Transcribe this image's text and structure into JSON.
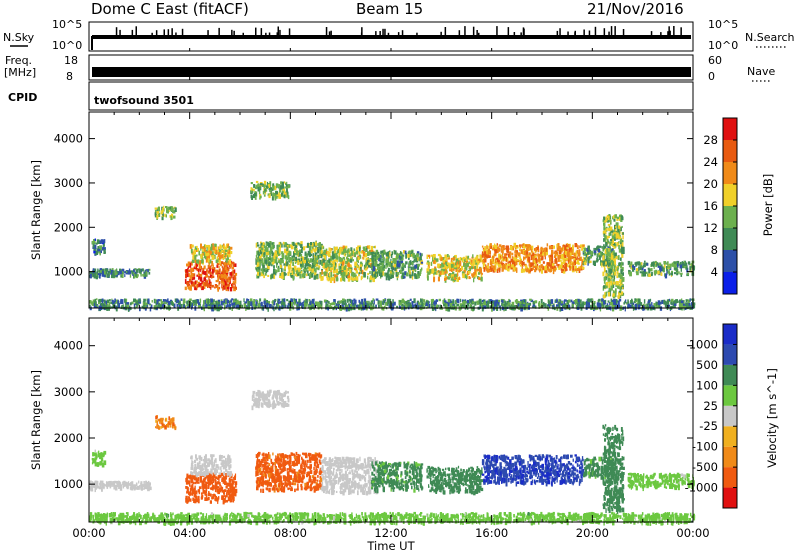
{
  "header": {
    "station": "Dome C East (fitACF)",
    "beam": "Beam 15",
    "date": "21/Nov/2016"
  },
  "panels": {
    "nsky_label": "N.Sky",
    "nsky_top": "10^5",
    "nsky_bottom": "10^0",
    "nsearch_label": "N.Search",
    "nsearch_top": "10^5",
    "nsearch_bottom": "10^0",
    "freq_label_1": "Freq.",
    "freq_label_2": "[MHz]",
    "freq_top": "18",
    "freq_bottom": "8",
    "nave_label": "Nave",
    "nave_top": "60",
    "nave_bottom": "0",
    "cpid_label": "CPID",
    "cpid_value": "twofsound 3501"
  },
  "colors": {
    "power_scale": [
      "#0b1fe8",
      "#2d50a8",
      "#3f8a55",
      "#6cb04e",
      "#f0d02a",
      "#f08a18",
      "#e85a10",
      "#e01010"
    ],
    "velocity_scale": [
      "#e01010",
      "#f05a10",
      "#f08a18",
      "#f0b020",
      "#c8c8c8",
      "#6cc840",
      "#3f8a55",
      "#2d4ab0",
      "#1a2cc8"
    ]
  },
  "chart_data": [
    {
      "type": "heatmap",
      "name": "power",
      "ylabel": "Slant Range [km]",
      "ylim": [
        180,
        4600
      ],
      "yticks": [
        "1000",
        "2000",
        "3000",
        "4000"
      ],
      "colorbar_label": "Power [dB]",
      "colorbar_ticks": [
        "4",
        "8",
        "12",
        "16",
        "20",
        "24",
        "28"
      ],
      "colorbar_range": [
        0,
        32
      ],
      "grid": false,
      "regions": [
        {
          "t0": 0.0,
          "t1": 2.4,
          "r0": 930,
          "r1": 1080,
          "value": 10
        },
        {
          "t0": 0.1,
          "t1": 0.6,
          "r0": 1450,
          "r1": 1750,
          "value": 8
        },
        {
          "t0": 2.6,
          "t1": 3.4,
          "r0": 2250,
          "r1": 2500,
          "value": 14
        },
        {
          "t0": 3.8,
          "t1": 5.8,
          "r0": 650,
          "r1": 1250,
          "value": 26
        },
        {
          "t0": 4.0,
          "t1": 5.6,
          "r0": 1250,
          "r1": 1650,
          "value": 18
        },
        {
          "t0": 6.4,
          "t1": 7.9,
          "r0": 2700,
          "r1": 3050,
          "value": 14
        },
        {
          "t0": 6.6,
          "t1": 9.2,
          "r0": 900,
          "r1": 1700,
          "value": 14
        },
        {
          "t0": 9.2,
          "t1": 11.4,
          "r0": 850,
          "r1": 1600,
          "value": 16
        },
        {
          "t0": 11.2,
          "t1": 13.2,
          "r0": 900,
          "r1": 1500,
          "value": 12
        },
        {
          "t0": 13.4,
          "t1": 15.6,
          "r0": 850,
          "r1": 1400,
          "value": 18
        },
        {
          "t0": 15.6,
          "t1": 19.6,
          "r0": 1050,
          "r1": 1650,
          "value": 22
        },
        {
          "t0": 19.6,
          "t1": 20.8,
          "r0": 1200,
          "r1": 1600,
          "value": 12
        },
        {
          "t0": 20.4,
          "t1": 21.2,
          "r0": 450,
          "r1": 2300,
          "value": 14
        },
        {
          "t0": 21.4,
          "t1": 24.0,
          "r0": 950,
          "r1": 1250,
          "value": 12
        },
        {
          "t0": 0.0,
          "t1": 24.0,
          "r0": 200,
          "r1": 400,
          "value": 10
        }
      ]
    },
    {
      "type": "heatmap",
      "name": "velocity",
      "ylabel": "Slant Range [km]",
      "ylim": [
        180,
        4600
      ],
      "yticks": [
        "1000",
        "2000",
        "3000",
        "4000"
      ],
      "colorbar_label": "Velocity [m s^-1]",
      "colorbar_ticks": [
        "1000",
        "500",
        "100",
        "25",
        "-25",
        "-100",
        "-500",
        "-1000"
      ],
      "grid": false,
      "regions": [
        {
          "t0": 0.0,
          "t1": 2.4,
          "r0": 930,
          "r1": 1080,
          "value": 0
        },
        {
          "t0": 0.1,
          "t1": 0.6,
          "r0": 1450,
          "r1": 1750,
          "value": 60
        },
        {
          "t0": 2.6,
          "t1": 3.4,
          "r0": 2250,
          "r1": 2500,
          "value": -80
        },
        {
          "t0": 3.8,
          "t1": 5.8,
          "r0": 650,
          "r1": 1250,
          "value": -250
        },
        {
          "t0": 4.0,
          "t1": 5.6,
          "r0": 1250,
          "r1": 1650,
          "value": 0
        },
        {
          "t0": 6.4,
          "t1": 7.9,
          "r0": 2700,
          "r1": 3050,
          "value": 0
        },
        {
          "t0": 6.6,
          "t1": 9.2,
          "r0": 900,
          "r1": 1700,
          "value": -150
        },
        {
          "t0": 9.2,
          "t1": 11.4,
          "r0": 850,
          "r1": 1600,
          "value": 0
        },
        {
          "t0": 11.2,
          "t1": 13.2,
          "r0": 900,
          "r1": 1500,
          "value": 150
        },
        {
          "t0": 13.4,
          "t1": 15.6,
          "r0": 850,
          "r1": 1400,
          "value": 200
        },
        {
          "t0": 15.6,
          "t1": 19.6,
          "r0": 1050,
          "r1": 1650,
          "value": 700
        },
        {
          "t0": 19.6,
          "t1": 20.8,
          "r0": 1200,
          "r1": 1600,
          "value": 150
        },
        {
          "t0": 20.4,
          "t1": 21.2,
          "r0": 450,
          "r1": 2300,
          "value": 200
        },
        {
          "t0": 21.4,
          "t1": 24.0,
          "r0": 950,
          "r1": 1250,
          "value": 60
        },
        {
          "t0": 0.0,
          "t1": 24.0,
          "r0": 200,
          "r1": 400,
          "value": 60
        }
      ]
    }
  ],
  "time_axis": {
    "label": "Time UT",
    "ticks": [
      "00:00",
      "04:00",
      "08:00",
      "12:00",
      "16:00",
      "20:00",
      "00:00"
    ],
    "range_hours": [
      0,
      24
    ]
  }
}
